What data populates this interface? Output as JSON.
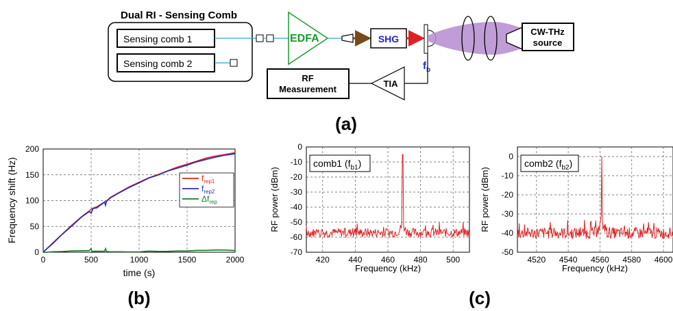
{
  "diagram": {
    "group_title": "Dual RI - Sensing Comb",
    "comb1": "Sensing comb 1",
    "comb2": "Sensing comb 2",
    "edfa": "EDFA",
    "shg": "SHG",
    "fb_main": "f",
    "fb_sub": "b",
    "cw_line1": "CW-THz",
    "cw_line2": "source",
    "rf_line1": "RF",
    "rf_line2": "Measurement",
    "tia": "TIA",
    "label_a": "(a)",
    "colors": {
      "edfa": "#1a9a2a",
      "shg": "#2222cc",
      "fiber": "#2aa7c9",
      "beam": "#b58ccf",
      "fb": "#1a2ad0"
    }
  },
  "chart_data": [
    {
      "id": "b",
      "type": "line",
      "panel_label": "(b)",
      "xlabel": "time (s)",
      "ylabel": "Frequency shift (Hz)",
      "xlim": [
        0,
        2000
      ],
      "ylim": [
        0,
        200
      ],
      "xticks": [
        0,
        500,
        1000,
        1500,
        2000
      ],
      "yticks": [
        0,
        50,
        100,
        150,
        200
      ],
      "grid": true,
      "legend_position": "right",
      "series": [
        {
          "name": "f",
          "sub": "rep1",
          "color": "#e02020",
          "x": [
            0,
            100,
            200,
            300,
            400,
            480,
            500,
            520,
            560,
            600,
            650,
            660,
            700,
            800,
            900,
            1000,
            1100,
            1200,
            1300,
            1400,
            1500,
            1600,
            1700,
            1800,
            1900,
            2000
          ],
          "y": [
            0,
            18,
            36,
            53,
            69,
            80,
            84,
            85,
            88,
            93,
            99,
            99,
            106,
            117,
            127,
            136,
            144,
            151,
            158,
            165,
            171,
            177,
            182,
            186,
            190,
            193
          ]
        },
        {
          "name": "f",
          "sub": "rep2",
          "color": "#2030c0",
          "x": [
            0,
            100,
            200,
            300,
            400,
            480,
            500,
            520,
            560,
            600,
            640,
            650,
            660,
            700,
            800,
            900,
            1000,
            1100,
            1200,
            1300,
            1400,
            1500,
            1600,
            1700,
            1800,
            1900,
            2000
          ],
          "y": [
            0,
            17,
            35,
            51,
            68,
            79,
            76,
            84,
            86,
            92,
            97,
            91,
            99,
            105,
            116,
            126,
            135,
            143,
            150,
            157,
            163,
            169,
            175,
            180,
            184,
            188,
            191
          ]
        },
        {
          "name": "Δf",
          "sub": "rep",
          "color": "#1a7a2a",
          "x": [
            0,
            100,
            200,
            300,
            400,
            480,
            500,
            510,
            520,
            600,
            640,
            650,
            660,
            700,
            800,
            900,
            1000,
            1100,
            1200,
            1300,
            1400,
            1500,
            1600,
            1700,
            1800,
            1900,
            2000
          ],
          "y": [
            0,
            1,
            2,
            3,
            3,
            3,
            7,
            -1,
            2,
            2,
            2,
            7,
            1,
            1,
            1,
            1,
            1,
            2,
            2,
            2,
            2,
            2,
            3,
            3,
            4,
            4,
            3
          ]
        }
      ]
    },
    {
      "id": "c1",
      "type": "line",
      "panel_label": "(c)",
      "legend_main": "comb1 (f",
      "legend_sub": "b1",
      "legend_end": ")",
      "xlabel": "Frequency (kHz)",
      "ylabel": "RF power (dBm)",
      "xlim": [
        410,
        510
      ],
      "ylim": [
        -70,
        0
      ],
      "xticks": [
        420,
        440,
        460,
        480,
        500
      ],
      "yticks": [
        0,
        -10,
        -20,
        -30,
        -40,
        -50,
        -60,
        -70
      ],
      "grid": true,
      "color": "#e02020",
      "noise_floor": -57,
      "peak": {
        "x": 469,
        "y": -5
      }
    },
    {
      "id": "c2",
      "type": "line",
      "legend_main": "comb2 (f",
      "legend_sub": "b2",
      "legend_end": ")",
      "xlabel": "Frequency (kHz)",
      "ylabel": "RF power (dBm)",
      "xlim": [
        4508,
        4606
      ],
      "ylim": [
        -50,
        5
      ],
      "xticks": [
        4520,
        4540,
        4560,
        4580,
        4600
      ],
      "yticks": [
        0,
        -10,
        -20,
        -30,
        -40,
        -50
      ],
      "grid": true,
      "color": "#e02020",
      "noise_floor": -40,
      "peak": {
        "x": 4561,
        "y": 0
      }
    }
  ]
}
